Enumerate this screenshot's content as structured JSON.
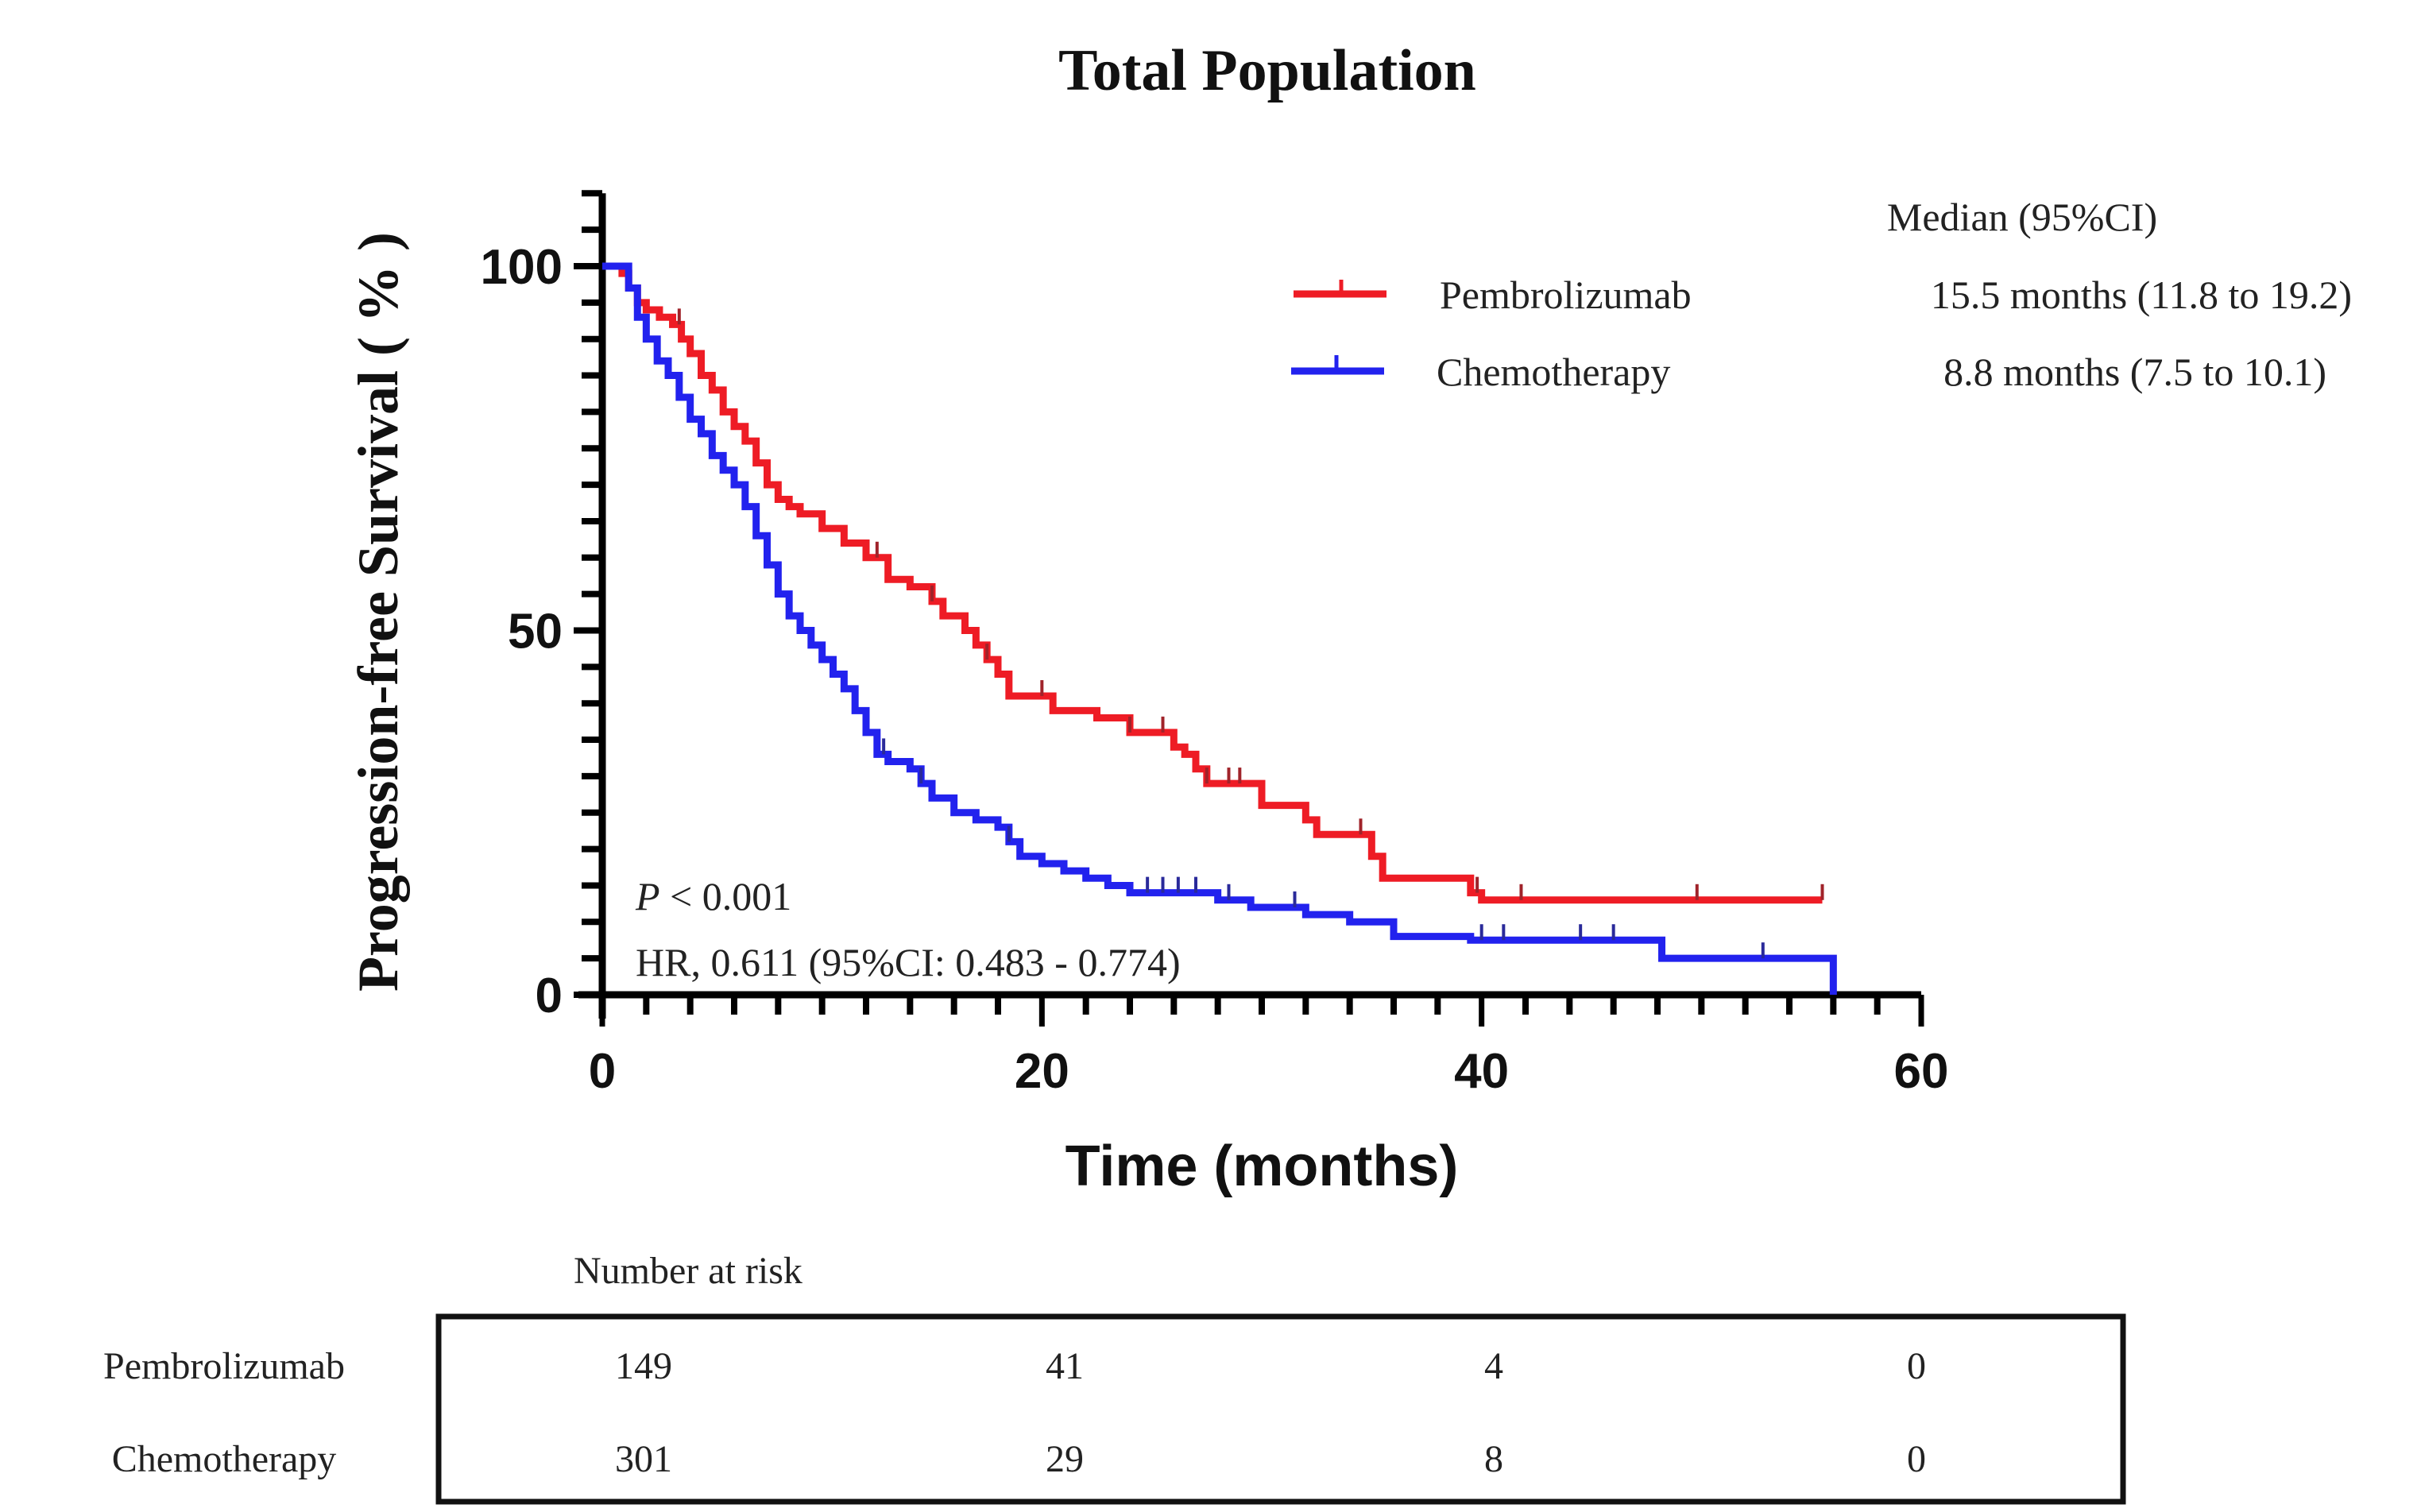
{
  "chart_data": {
    "type": "line",
    "subtype": "kaplan-meier",
    "title": "Total Population",
    "xlabel": "Time (months)",
    "ylabel": "Progression-free Survival ( % )",
    "xlim": [
      0,
      60
    ],
    "ylim": [
      0,
      110
    ],
    "x_ticks": [
      0,
      20,
      40,
      60
    ],
    "x_minor_step": 2,
    "y_ticks": [
      0,
      50,
      100
    ],
    "y_minor_step": 5,
    "grid": false,
    "legend": {
      "header": "Median (95%CI)",
      "placement": "top-right",
      "entries": [
        {
          "name": "Pembrolizumab",
          "median": "15.5 months (11.8 to 19.2)"
        },
        {
          "name": "Chemotherapy",
          "median": "8.8 months (7.5 to 10.1)"
        }
      ]
    },
    "annotations": {
      "p_prefix": "P",
      "p_value": " < 0.001",
      "hr": "HR, 0.611 (95%CI: 0.483 - 0.774)"
    },
    "series": [
      {
        "name": "Pembrolizumab",
        "color": "#ee1c25",
        "points": [
          [
            0,
            100
          ],
          [
            0.6,
            100
          ],
          [
            0.9,
            99
          ],
          [
            1.2,
            97
          ],
          [
            1.6,
            95
          ],
          [
            2.0,
            94
          ],
          [
            2.6,
            93
          ],
          [
            3.2,
            92
          ],
          [
            3.6,
            90
          ],
          [
            4.0,
            88
          ],
          [
            4.5,
            85
          ],
          [
            5.0,
            83
          ],
          [
            5.5,
            80
          ],
          [
            6.0,
            78
          ],
          [
            6.5,
            76
          ],
          [
            7.0,
            73
          ],
          [
            7.5,
            70
          ],
          [
            8.0,
            68
          ],
          [
            8.5,
            67
          ],
          [
            9.0,
            66
          ],
          [
            10.0,
            64
          ],
          [
            11.0,
            62
          ],
          [
            12.0,
            60
          ],
          [
            13.0,
            57
          ],
          [
            14.0,
            56
          ],
          [
            15.0,
            54
          ],
          [
            15.5,
            52
          ],
          [
            16.5,
            50
          ],
          [
            17.0,
            48
          ],
          [
            17.5,
            46
          ],
          [
            18.0,
            44
          ],
          [
            18.5,
            41
          ],
          [
            20.0,
            41
          ],
          [
            20.5,
            39
          ],
          [
            22.0,
            39
          ],
          [
            22.5,
            38
          ],
          [
            23.5,
            38
          ],
          [
            24.0,
            36
          ],
          [
            25.5,
            36
          ],
          [
            26.0,
            34
          ],
          [
            26.5,
            33
          ],
          [
            27.0,
            31
          ],
          [
            27.5,
            29
          ],
          [
            29.5,
            29
          ],
          [
            30.0,
            26
          ],
          [
            31.5,
            26
          ],
          [
            32.0,
            24
          ],
          [
            32.5,
            22
          ],
          [
            34.5,
            22
          ],
          [
            35.0,
            19
          ],
          [
            35.5,
            16
          ],
          [
            39.0,
            16
          ],
          [
            39.5,
            14
          ],
          [
            40.0,
            13
          ],
          [
            55.5,
            13
          ]
        ],
        "censor_times": [
          3.5,
          12.5,
          15.0,
          17.5,
          20.0,
          24.0,
          25.5,
          27.5,
          28.5,
          29.0,
          34.5,
          39.8,
          41.8,
          49.8,
          55.5
        ]
      },
      {
        "name": "Chemotherapy",
        "color": "#2222ee",
        "points": [
          [
            0,
            100
          ],
          [
            0.8,
            100
          ],
          [
            1.2,
            97
          ],
          [
            1.6,
            93
          ],
          [
            2.0,
            90
          ],
          [
            2.5,
            87
          ],
          [
            3.0,
            85
          ],
          [
            3.5,
            82
          ],
          [
            4.0,
            79
          ],
          [
            4.5,
            77
          ],
          [
            5.0,
            74
          ],
          [
            5.5,
            72
          ],
          [
            6.0,
            70
          ],
          [
            6.5,
            67
          ],
          [
            7.0,
            63
          ],
          [
            7.5,
            59
          ],
          [
            8.0,
            55
          ],
          [
            8.5,
            52
          ],
          [
            9.0,
            50
          ],
          [
            9.5,
            48
          ],
          [
            10.0,
            46
          ],
          [
            10.5,
            44
          ],
          [
            11.0,
            42
          ],
          [
            11.5,
            39
          ],
          [
            12.0,
            36
          ],
          [
            12.5,
            33
          ],
          [
            13.0,
            32
          ],
          [
            14.0,
            31
          ],
          [
            14.5,
            29
          ],
          [
            15.0,
            27
          ],
          [
            16.0,
            25
          ],
          [
            17.0,
            24
          ],
          [
            18.0,
            23
          ],
          [
            18.5,
            21
          ],
          [
            19.0,
            19
          ],
          [
            20.0,
            18
          ],
          [
            21.0,
            17
          ],
          [
            22.0,
            16
          ],
          [
            23.0,
            15
          ],
          [
            24.0,
            14
          ],
          [
            27.0,
            14
          ],
          [
            28.0,
            13
          ],
          [
            29.5,
            12
          ],
          [
            31.0,
            12
          ],
          [
            32.0,
            11
          ],
          [
            33.0,
            11
          ],
          [
            34.0,
            10
          ],
          [
            35.5,
            10
          ],
          [
            36.0,
            8
          ],
          [
            39.0,
            8
          ],
          [
            39.5,
            7.5
          ],
          [
            48.0,
            7.5
          ],
          [
            48.2,
            5
          ],
          [
            56.0,
            5
          ],
          [
            56.0,
            0
          ]
        ],
        "censor_times": [
          12.8,
          14.5,
          18.5,
          24.8,
          25.5,
          26.2,
          27.0,
          28.5,
          31.5,
          40.0,
          41.0,
          44.5,
          46.0,
          52.8
        ]
      }
    ],
    "risk_table": {
      "title": "Number at risk",
      "time_points": [
        0,
        20,
        40,
        60
      ],
      "rows": [
        {
          "label": "Pembrolizumab",
          "values": [
            "149",
            "41",
            "4",
            "0"
          ]
        },
        {
          "label": "Chemotherapy",
          "values": [
            "301",
            "29",
            "8",
            "0"
          ]
        }
      ]
    }
  }
}
